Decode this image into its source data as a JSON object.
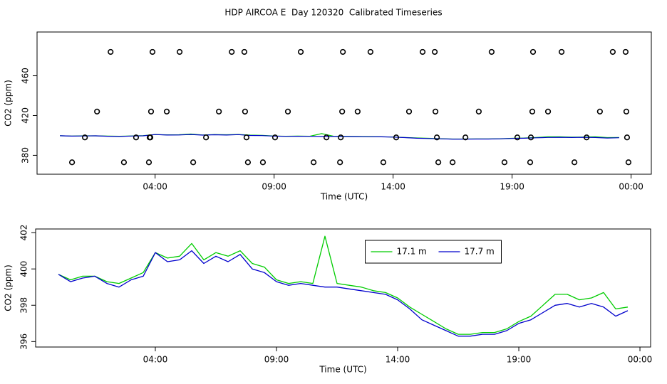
{
  "chart_data": [
    {
      "type": "scatter",
      "title": "HDP AIRCOA E  Day 120320  Calibrated Timeseries",
      "x_label": "Time (UTC)",
      "y_label": "CO2 (ppm)",
      "xlim": [
        -0.96,
        24.85
      ],
      "ylim": [
        361,
        504
      ],
      "xticks": [
        {
          "value": 4,
          "label": "04:00"
        },
        {
          "value": 9,
          "label": "09:00"
        },
        {
          "value": 14,
          "label": "14:00"
        },
        {
          "value": 19,
          "label": "19:00"
        },
        {
          "value": 24,
          "label": "00:00"
        }
      ],
      "yticks": [
        380,
        420,
        460
      ],
      "color": "#000000",
      "x": [
        2.13,
        3.89,
        5.03,
        7.22,
        7.75,
        10.12,
        11.89,
        13.05,
        15.24,
        15.75,
        18.14,
        19.88,
        21.08,
        23.23,
        23.77,
        1.56,
        3.83,
        4.49,
        6.68,
        7.78,
        9.58,
        11.86,
        12.51,
        14.67,
        15.78,
        17.6,
        19.85,
        20.51,
        22.69,
        23.8,
        1.05,
        3.2,
        3.77,
        3.8,
        6.14,
        7.84,
        9.04,
        11.2,
        11.8,
        14.13,
        15.84,
        17.04,
        19.22,
        19.79,
        22.13,
        23.83,
        0.51,
        2.69,
        3.74,
        5.6,
        7.9,
        8.53,
        10.66,
        11.77,
        13.59,
        15.9,
        16.5,
        18.68,
        19.76,
        21.62,
        23.89
      ],
      "y": [
        484,
        484,
        484,
        484,
        484,
        484,
        484,
        484,
        484,
        484,
        484,
        484,
        484,
        484,
        484,
        424,
        424,
        424,
        424,
        424,
        424,
        424,
        424,
        424,
        424,
        424,
        424,
        424,
        424,
        424,
        398,
        398,
        398,
        398,
        398,
        398,
        398,
        398,
        398,
        398,
        398,
        398,
        398,
        398,
        398,
        398,
        373,
        373,
        373,
        373,
        373,
        373,
        373,
        373,
        373,
        373,
        373,
        373,
        373,
        373,
        373
      ]
    },
    {
      "type": "line",
      "x_label": "Time (UTC)",
      "y_label": "CO2 (ppm)",
      "xlim": [
        -0.94,
        24.44
      ],
      "ylim": [
        395.7,
        402.2
      ],
      "xticks": [
        {
          "value": 4,
          "label": "04:00"
        },
        {
          "value": 9,
          "label": "09:00"
        },
        {
          "value": 14,
          "label": "14:00"
        },
        {
          "value": 19,
          "label": "19:00"
        },
        {
          "value": 24,
          "label": "00:00"
        }
      ],
      "yticks": [
        396,
        398,
        400,
        402
      ],
      "legend": "top",
      "x": [
        0,
        0.5,
        1,
        1.5,
        2,
        2.5,
        3,
        3.5,
        4,
        4.5,
        5,
        5.5,
        6,
        6.5,
        7,
        7.5,
        8,
        8.5,
        9,
        9.5,
        10,
        10.5,
        11,
        11.5,
        12,
        12.5,
        13,
        13.5,
        14,
        14.5,
        15,
        15.5,
        16,
        16.5,
        17,
        17.5,
        18,
        18.5,
        19,
        19.5,
        20,
        20.5,
        21,
        21.5,
        22,
        22.5,
        23,
        23.5
      ],
      "series": [
        {
          "name": "17.1 m",
          "color": "#00cc00",
          "values": [
            399.7,
            399.4,
            399.6,
            399.6,
            399.3,
            399.2,
            399.5,
            399.8,
            400.9,
            400.6,
            400.7,
            401.4,
            400.5,
            400.9,
            400.7,
            401.0,
            400.3,
            400.1,
            399.4,
            399.2,
            399.3,
            399.2,
            401.8,
            399.2,
            399.1,
            399.0,
            398.8,
            398.7,
            398.4,
            397.9,
            397.5,
            397.1,
            396.7,
            396.4,
            396.4,
            396.5,
            396.5,
            396.7,
            397.1,
            397.4,
            398.0,
            398.6,
            398.6,
            398.3,
            398.4,
            398.7,
            397.8,
            397.9
          ]
        },
        {
          "name": "17.7 m",
          "color": "#0000cc",
          "values": [
            399.7,
            399.3,
            399.5,
            399.6,
            399.2,
            399.0,
            399.4,
            399.6,
            400.9,
            400.4,
            400.5,
            401.0,
            400.3,
            400.7,
            400.4,
            400.8,
            400.0,
            399.8,
            399.3,
            399.1,
            399.2,
            399.1,
            399.0,
            399.0,
            398.9,
            398.8,
            398.7,
            398.6,
            398.3,
            397.8,
            397.2,
            396.9,
            396.6,
            396.3,
            396.3,
            396.4,
            396.4,
            396.6,
            397.0,
            397.2,
            397.6,
            398.0,
            398.1,
            397.9,
            398.1,
            397.9,
            397.4,
            397.7
          ]
        }
      ]
    }
  ]
}
